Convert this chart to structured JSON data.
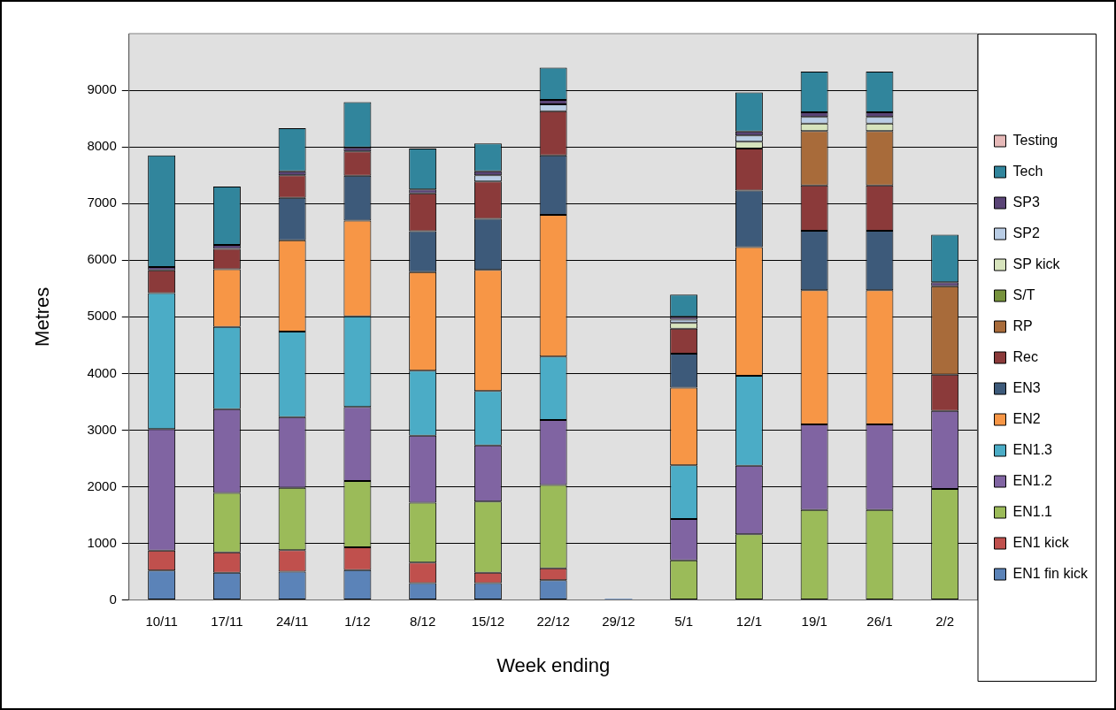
{
  "chart_data": {
    "type": "bar",
    "stacked": true,
    "xlabel": "Week ending",
    "ylabel": "Metres",
    "legend": "right",
    "grid": "y",
    "categories": [
      "10/11",
      "17/11",
      "24/11",
      "1/12",
      "8/12",
      "15/12",
      "22/12",
      "29/12",
      "5/1",
      "12/1",
      "19/1",
      "26/1",
      "2/2"
    ],
    "ylim": [
      0,
      10000
    ],
    "yticks": [
      0,
      1000,
      2000,
      3000,
      4000,
      5000,
      6000,
      7000,
      8000,
      9000
    ],
    "series": [
      {
        "name": "EN1 fin kick",
        "color": "#5b83b8",
        "values": [
          520,
          480,
          500,
          530,
          300,
          300,
          350,
          20,
          0,
          0,
          0,
          0,
          0
        ]
      },
      {
        "name": "EN1 kick",
        "color": "#c0504d",
        "values": [
          350,
          360,
          380,
          400,
          360,
          180,
          210,
          0,
          0,
          0,
          0,
          0,
          0
        ]
      },
      {
        "name": "EN1.1",
        "color": "#9bbb59",
        "values": [
          0,
          1050,
          1100,
          1170,
          1060,
          1260,
          1470,
          0,
          700,
          1160,
          1590,
          1590,
          1960
        ]
      },
      {
        "name": "EN1.2",
        "color": "#8064a2",
        "values": [
          2150,
          1480,
          1250,
          1310,
          1180,
          990,
          1150,
          0,
          730,
          1210,
          1510,
          1510,
          1380
        ]
      },
      {
        "name": "EN1.3",
        "color": "#4bacc6",
        "values": [
          2400,
          1450,
          1510,
          1600,
          1150,
          960,
          1120,
          0,
          950,
          1590,
          0,
          0,
          0
        ]
      },
      {
        "name": "EN2",
        "color": "#f79646",
        "values": [
          0,
          1020,
          1610,
          1690,
          1740,
          2140,
          2500,
          0,
          1370,
          2270,
          2370,
          2370,
          0
        ]
      },
      {
        "name": "EN3",
        "color": "#3d5a7a",
        "values": [
          0,
          0,
          750,
          790,
          720,
          900,
          1050,
          0,
          600,
          1000,
          1050,
          1050,
          0
        ]
      },
      {
        "name": "Rec",
        "color": "#8b3a3a",
        "values": [
          400,
          360,
          400,
          430,
          670,
          660,
          780,
          0,
          440,
          740,
          800,
          800,
          640
        ]
      },
      {
        "name": "RP",
        "color": "#a86b3a",
        "values": [
          0,
          0,
          0,
          0,
          0,
          0,
          0,
          0,
          0,
          0,
          960,
          960,
          1560
        ]
      },
      {
        "name": "S/T",
        "color": "#76923c",
        "values": [
          0,
          0,
          0,
          0,
          0,
          0,
          0,
          0,
          0,
          0,
          0,
          0,
          0
        ]
      },
      {
        "name": "SP kick",
        "color": "#d7e4bd",
        "values": [
          0,
          0,
          0,
          0,
          0,
          0,
          0,
          0,
          100,
          120,
          130,
          130,
          0
        ]
      },
      {
        "name": "SP2",
        "color": "#b9cde5",
        "values": [
          0,
          0,
          0,
          0,
          0,
          110,
          120,
          0,
          60,
          110,
          120,
          120,
          0
        ]
      },
      {
        "name": "SP3",
        "color": "#5a4476",
        "values": [
          60,
          70,
          70,
          70,
          70,
          70,
          80,
          0,
          50,
          70,
          80,
          80,
          70
        ]
      },
      {
        "name": "Tech",
        "color": "#31859c",
        "values": [
          1970,
          1030,
          760,
          800,
          720,
          490,
          570,
          0,
          390,
          690,
          720,
          720,
          840
        ]
      },
      {
        "name": "Testing",
        "color": "#e6b9b8",
        "values": [
          0,
          0,
          0,
          0,
          0,
          0,
          0,
          0,
          0,
          0,
          0,
          0,
          0
        ]
      }
    ]
  }
}
